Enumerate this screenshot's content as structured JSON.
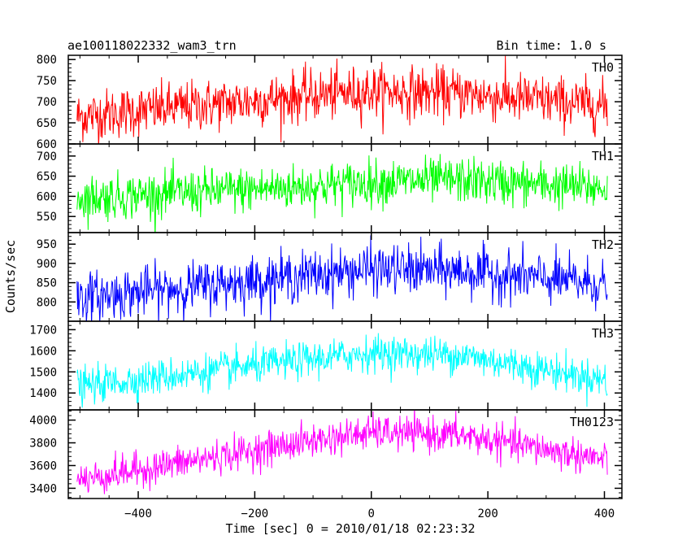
{
  "chart_data": {
    "type": "line",
    "title_left": "ae100118022332_wam3_trn",
    "title_right": "Bin time: 1.0 s",
    "xlabel": "Time [sec] 0 = 2010/01/18 02:23:32",
    "ylabel": "Counts/sec",
    "xlim": [
      -520,
      430
    ],
    "xticks": [
      -400,
      -200,
      0,
      200,
      400
    ],
    "x_range": [
      -505,
      405
    ],
    "bin_time": 1.0,
    "panels": [
      {
        "name": "TH0",
        "color": "#ff0000",
        "ylim": [
          600,
          810
        ],
        "yticks": [
          600,
          650,
          700,
          750,
          800
        ],
        "trend": [
          {
            "x": -505,
            "y": 665
          },
          {
            "x": -100,
            "y": 715
          },
          {
            "x": 0,
            "y": 725
          },
          {
            "x": 150,
            "y": 720
          },
          {
            "x": 405,
            "y": 690
          }
        ],
        "noise_sd": 30
      },
      {
        "name": "TH1",
        "color": "#00ff00",
        "ylim": [
          510,
          730
        ],
        "yticks": [
          550,
          600,
          650,
          700
        ],
        "trend": [
          {
            "x": -505,
            "y": 595
          },
          {
            "x": -100,
            "y": 625
          },
          {
            "x": 0,
            "y": 635
          },
          {
            "x": 150,
            "y": 640
          },
          {
            "x": 405,
            "y": 620
          }
        ],
        "noise_sd": 28
      },
      {
        "name": "TH2",
        "color": "#0000ff",
        "ylim": [
          750,
          980
        ],
        "yticks": [
          800,
          850,
          900,
          950
        ],
        "trend": [
          {
            "x": -505,
            "y": 810
          },
          {
            "x": -100,
            "y": 870
          },
          {
            "x": 0,
            "y": 885
          },
          {
            "x": 150,
            "y": 880
          },
          {
            "x": 405,
            "y": 845
          }
        ],
        "noise_sd": 32
      },
      {
        "name": "TH3",
        "color": "#00ffff",
        "ylim": [
          1320,
          1740
        ],
        "yticks": [
          1400,
          1500,
          1600,
          1700
        ],
        "trend": [
          {
            "x": -505,
            "y": 1430
          },
          {
            "x": -100,
            "y": 1560
          },
          {
            "x": 0,
            "y": 1590
          },
          {
            "x": 150,
            "y": 1580
          },
          {
            "x": 405,
            "y": 1460
          }
        ],
        "noise_sd": 42
      },
      {
        "name": "TH0123",
        "color": "#ff00ff",
        "ylim": [
          3310,
          4090
        ],
        "yticks": [
          3400,
          3600,
          3800,
          4000
        ],
        "trend": [
          {
            "x": -505,
            "y": 3470
          },
          {
            "x": -100,
            "y": 3820
          },
          {
            "x": 0,
            "y": 3890
          },
          {
            "x": 150,
            "y": 3870
          },
          {
            "x": 405,
            "y": 3650
          }
        ],
        "noise_sd": 75
      }
    ]
  }
}
